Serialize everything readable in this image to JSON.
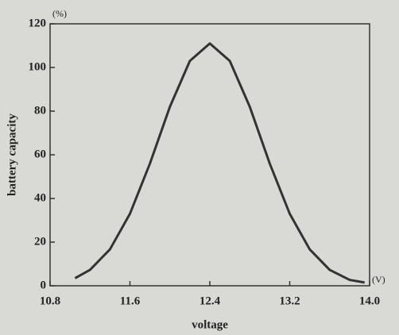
{
  "chart_data": {
    "type": "line",
    "x_label": "voltage",
    "y_label": "battery capacity",
    "x_unit": "(V)",
    "y_unit": "(%)",
    "x": [
      11.05,
      11.2,
      11.4,
      11.6,
      11.8,
      12.0,
      12.2,
      12.4,
      12.6,
      12.8,
      13.0,
      13.2,
      13.4,
      13.6,
      13.8,
      13.95
    ],
    "series": [
      {
        "color": "#333333",
        "values": [
          3.5,
          7.3,
          16.7,
          33,
          56,
          82,
          103,
          111,
          103,
          82,
          56,
          33,
          16.7,
          7.3,
          2.7,
          1.5
        ]
      }
    ],
    "xlim": [
      10.8,
      14.0
    ],
    "xticks": [
      10.8,
      11.6,
      12.4,
      13.2,
      {
        "value": 14,
        "label": "14.0"
      }
    ],
    "ylim": [
      0,
      120
    ],
    "yticks": [
      0,
      20,
      40,
      60,
      80,
      100,
      120
    ],
    "grid": false
  }
}
